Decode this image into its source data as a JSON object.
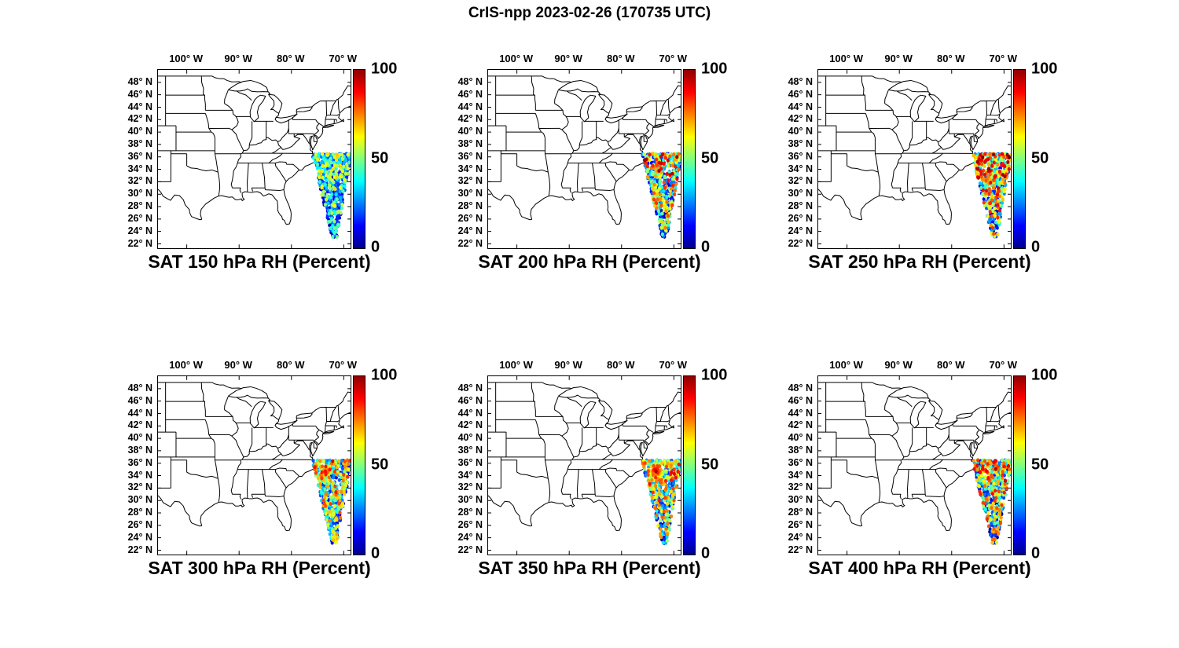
{
  "figure": {
    "title": "CrIS-npp 2023-02-26 (170735 UTC)",
    "background_color": "#ffffff"
  },
  "axes": {
    "lon_ticks": [
      {
        "label": "100° W",
        "deg_w": 100
      },
      {
        "label": "90° W",
        "deg_w": 90
      },
      {
        "label": "80° W",
        "deg_w": 80
      },
      {
        "label": "70° W",
        "deg_w": 70
      }
    ],
    "lat_ticks": [
      {
        "label": "48° N",
        "deg_n": 48
      },
      {
        "label": "46° N",
        "deg_n": 46
      },
      {
        "label": "44° N",
        "deg_n": 44
      },
      {
        "label": "42° N",
        "deg_n": 42
      },
      {
        "label": "40° N",
        "deg_n": 40
      },
      {
        "label": "38° N",
        "deg_n": 38
      },
      {
        "label": "36° N",
        "deg_n": 36
      },
      {
        "label": "34° N",
        "deg_n": 34
      },
      {
        "label": "32° N",
        "deg_n": 32
      },
      {
        "label": "30° N",
        "deg_n": 30
      },
      {
        "label": "28° N",
        "deg_n": 28
      },
      {
        "label": "26° N",
        "deg_n": 26
      },
      {
        "label": "24° N",
        "deg_n": 24
      },
      {
        "label": "22° N",
        "deg_n": 22
      }
    ],
    "lon_range_deg_w": [
      105.5,
      68.7
    ],
    "lat_range_deg_n": [
      21.3,
      50.0
    ]
  },
  "colorbar": {
    "tick_labels": [
      {
        "label": "100",
        "value": 100,
        "position": "top"
      },
      {
        "label": "50",
        "value": 50,
        "position": "middle"
      },
      {
        "label": "0",
        "value": 0,
        "position": "bottom"
      }
    ],
    "min": 0,
    "max": 100,
    "colormap": "jet",
    "color_low": "#00008f",
    "color_mid": "#00ffff",
    "color_high": "#8f0000"
  },
  "chart_data": [
    {
      "type": "scatter",
      "title": "SAT 150 hPa RH (Percent)",
      "pressure_level_hPa": 150,
      "variable": "RH",
      "units": "Percent",
      "colorbar_min": 0,
      "colorbar_max": 100,
      "colormap": "jet",
      "swath": {
        "region": "western Atlantic off the southeastern US coast",
        "lat_min_deg_n": 23.2,
        "lat_max_deg_n": 36.4,
        "center_lon_deg_w_bottom": 71.8,
        "center_lon_deg_w_top": 72.3,
        "half_width_deg_bottom": 0.5,
        "half_width_deg_top": 3.8,
        "n_points": 560,
        "seed": 11,
        "value_scale": 55,
        "value_skew": 1.9,
        "north_bias": 22,
        "hotspot": null
      }
    },
    {
      "type": "scatter",
      "title": "SAT 200 hPa RH (Percent)",
      "pressure_level_hPa": 200,
      "variable": "RH",
      "units": "Percent",
      "colorbar_min": 0,
      "colorbar_max": 100,
      "colormap": "jet",
      "swath": {
        "region": "western Atlantic off the southeastern US coast",
        "lat_min_deg_n": 23.2,
        "lat_max_deg_n": 36.4,
        "center_lon_deg_w_bottom": 71.8,
        "center_lon_deg_w_top": 72.3,
        "half_width_deg_bottom": 0.5,
        "half_width_deg_top": 3.8,
        "n_points": 560,
        "seed": 22,
        "value_scale": 80,
        "value_skew": 1.8,
        "north_bias": 25,
        "hotspot": null
      }
    },
    {
      "type": "scatter",
      "title": "SAT 250 hPa RH (Percent)",
      "pressure_level_hPa": 250,
      "variable": "RH",
      "units": "Percent",
      "colorbar_min": 0,
      "colorbar_max": 100,
      "colormap": "jet",
      "swath": {
        "region": "western Atlantic off the southeastern US coast",
        "lat_min_deg_n": 23.2,
        "lat_max_deg_n": 36.4,
        "center_lon_deg_w_bottom": 71.8,
        "center_lon_deg_w_top": 72.3,
        "half_width_deg_bottom": 0.5,
        "half_width_deg_top": 3.8,
        "n_points": 560,
        "seed": 33,
        "value_scale": 82,
        "value_skew": 1.7,
        "north_bias": 26,
        "hotspot": null
      }
    },
    {
      "type": "scatter",
      "title": "SAT 300 hPa RH (Percent)",
      "pressure_level_hPa": 300,
      "variable": "RH",
      "units": "Percent",
      "colorbar_min": 0,
      "colorbar_max": 100,
      "colormap": "jet",
      "swath": {
        "region": "western Atlantic off the southeastern US coast",
        "lat_min_deg_n": 23.2,
        "lat_max_deg_n": 36.4,
        "center_lon_deg_w_bottom": 71.8,
        "center_lon_deg_w_top": 72.3,
        "half_width_deg_bottom": 0.5,
        "half_width_deg_top": 3.8,
        "n_points": 560,
        "seed": 44,
        "value_scale": 75,
        "value_skew": 1.8,
        "north_bias": 24,
        "hotspot": {
          "lon_deg_w": 73.4,
          "lat_deg_n": 34.7,
          "radius_deg": 1.15,
          "peak_value": 93
        }
      }
    },
    {
      "type": "scatter",
      "title": "SAT 350 hPa RH (Percent)",
      "pressure_level_hPa": 350,
      "variable": "RH",
      "units": "Percent",
      "colorbar_min": 0,
      "colorbar_max": 100,
      "colormap": "jet",
      "swath": {
        "region": "western Atlantic off the southeastern US coast",
        "lat_min_deg_n": 23.2,
        "lat_max_deg_n": 36.4,
        "center_lon_deg_w_bottom": 71.8,
        "center_lon_deg_w_top": 72.3,
        "half_width_deg_bottom": 0.5,
        "half_width_deg_top": 3.8,
        "n_points": 560,
        "seed": 55,
        "value_scale": 75,
        "value_skew": 1.8,
        "north_bias": 24,
        "hotspot": {
          "lon_deg_w": 73.4,
          "lat_deg_n": 34.7,
          "radius_deg": 1.45,
          "peak_value": 100
        }
      }
    },
    {
      "type": "scatter",
      "title": "SAT 400 hPa RH (Percent)",
      "pressure_level_hPa": 400,
      "variable": "RH",
      "units": "Percent",
      "colorbar_min": 0,
      "colorbar_max": 100,
      "colormap": "jet",
      "swath": {
        "region": "western Atlantic off the southeastern US coast",
        "lat_min_deg_n": 23.2,
        "lat_max_deg_n": 36.4,
        "center_lon_deg_w_bottom": 71.8,
        "center_lon_deg_w_top": 72.3,
        "half_width_deg_bottom": 0.5,
        "half_width_deg_top": 3.8,
        "n_points": 560,
        "seed": 66,
        "value_scale": 78,
        "value_skew": 1.7,
        "north_bias": 24,
        "hotspot": {
          "lon_deg_w": 73.4,
          "lat_deg_n": 34.7,
          "radius_deg": 1.1,
          "peak_value": 94
        }
      }
    }
  ]
}
